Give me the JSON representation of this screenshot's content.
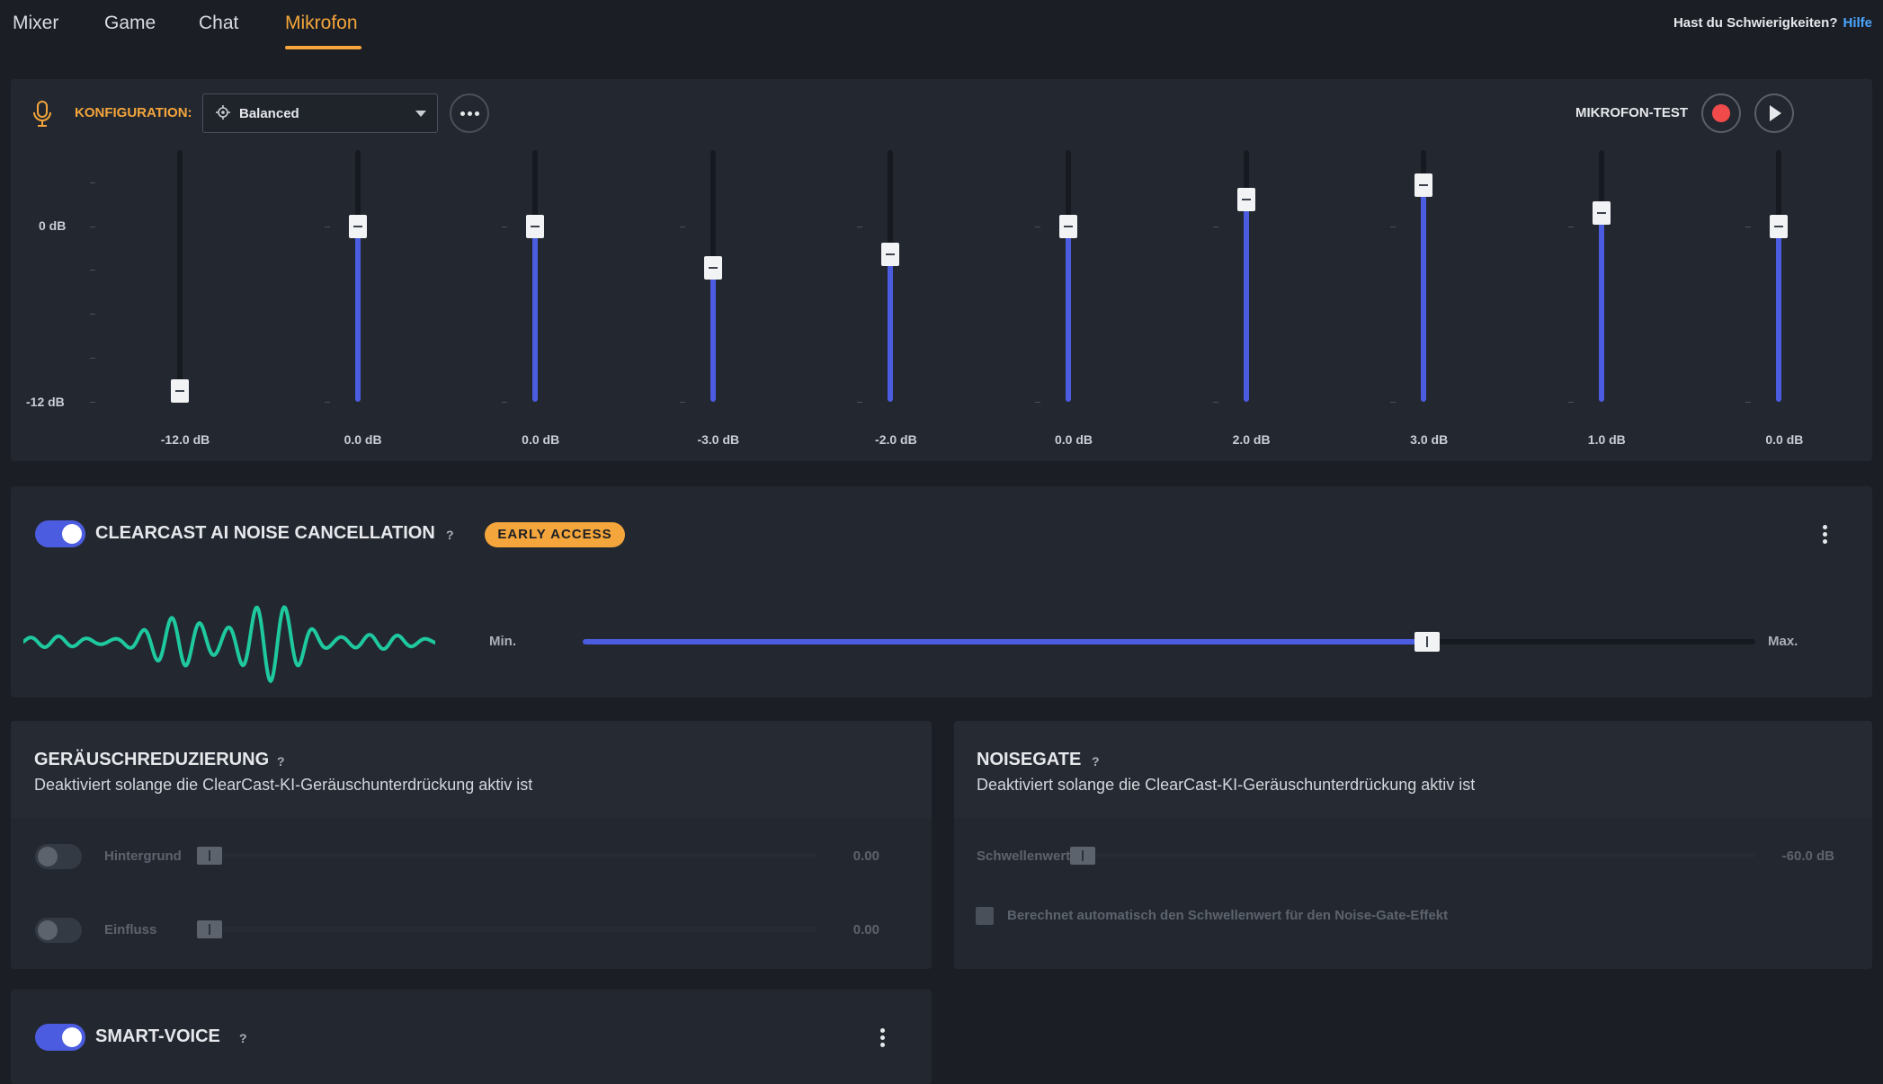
{
  "nav": {
    "tabs": [
      "Mixer",
      "Game",
      "Chat",
      "Mikrofon"
    ],
    "active_tab": "Mikrofon",
    "help_text": "Hast du Schwierigkeiten?",
    "help_link": "Hilfe"
  },
  "eq": {
    "config_label": "KONFIGURATION:",
    "preset": "Balanced",
    "mic_test_label": "MIKROFON-TEST",
    "axis_labels": [
      "0 dB",
      "-12 dB"
    ],
    "bands": [
      {
        "value": -12.0,
        "label": "-12.0 dB"
      },
      {
        "value": 0.0,
        "label": "0.0 dB"
      },
      {
        "value": 0.0,
        "label": "0.0 dB"
      },
      {
        "value": -3.0,
        "label": "-3.0 dB"
      },
      {
        "value": -2.0,
        "label": "-2.0 dB"
      },
      {
        "value": 0.0,
        "label": "0.0 dB"
      },
      {
        "value": 2.0,
        "label": "2.0 dB"
      },
      {
        "value": 3.0,
        "label": "3.0 dB"
      },
      {
        "value": 1.0,
        "label": "1.0 dB"
      },
      {
        "value": 0.0,
        "label": "0.0 dB"
      }
    ],
    "colors": {
      "accent": "#4b5ce0",
      "highlight": "#f4a53b",
      "record": "#f04a4a"
    }
  },
  "clearcast": {
    "title": "CLEARCAST AI NOISE CANCELLATION",
    "help": "?",
    "badge": "EARLY ACCESS",
    "enabled": true,
    "min_label": "Min.",
    "max_label": "Max.",
    "level": 0.72,
    "wave_color": "#1fc9a0"
  },
  "noise_reduction": {
    "title": "GERÄUSCHREDUZIERUNG",
    "help": "?",
    "description": "Deaktiviert solange die ClearCast-KI-Geräuschunterdrückung aktiv ist",
    "rows": [
      {
        "label": "Hintergrund",
        "value": "0.00",
        "enabled": false
      },
      {
        "label": "Einfluss",
        "value": "0.00",
        "enabled": false
      }
    ]
  },
  "noisegate": {
    "title": "NOISEGATE",
    "help": "?",
    "description": "Deaktiviert solange die ClearCast-KI-Geräuschunterdrückung aktiv ist",
    "threshold_label": "Schwellenwert",
    "threshold_value": "-60.0 dB",
    "auto_label": "Berechnet automatisch den Schwellenwert für den Noise-Gate-Effekt"
  },
  "smart_voice": {
    "title": "SMART-VOICE",
    "help": "?",
    "enabled": true
  }
}
